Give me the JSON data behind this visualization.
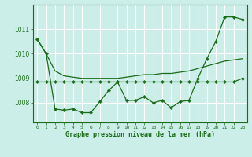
{
  "background_color": "#cceee8",
  "grid_color": "#ffffff",
  "line_color": "#1a6b1a",
  "title": "Graphe pression niveau de la mer (hPa)",
  "xlim": [
    -0.5,
    23.5
  ],
  "ylim": [
    1007.2,
    1012.0
  ],
  "yticks": [
    1008,
    1009,
    1010,
    1011
  ],
  "xtick_labels": [
    "0",
    "1",
    "2",
    "3",
    "4",
    "5",
    "6",
    "7",
    "8",
    "9",
    "10",
    "11",
    "12",
    "13",
    "14",
    "15",
    "16",
    "17",
    "18",
    "19",
    "20",
    "21",
    "22",
    "23"
  ],
  "series1_x": [
    0,
    1,
    2,
    3,
    4,
    5,
    6,
    7,
    8,
    9,
    10,
    11,
    12,
    13,
    14,
    15,
    16,
    17,
    18,
    19,
    20,
    21,
    22,
    23
  ],
  "series1_y": [
    1010.6,
    1010.0,
    1007.75,
    1007.7,
    1007.75,
    1007.6,
    1007.6,
    1008.05,
    1008.5,
    1008.85,
    1008.1,
    1008.1,
    1008.25,
    1008.0,
    1008.1,
    1007.8,
    1008.05,
    1008.1,
    1009.0,
    1009.8,
    1010.5,
    1011.5,
    1011.5,
    1011.4
  ],
  "series2_x": [
    0,
    1,
    2,
    3,
    4,
    5,
    6,
    7,
    8,
    9,
    10,
    11,
    12,
    13,
    14,
    15,
    16,
    17,
    18,
    19,
    20,
    21,
    22,
    23
  ],
  "series2_y": [
    1008.85,
    1008.85,
    1008.85,
    1008.85,
    1008.85,
    1008.85,
    1008.85,
    1008.85,
    1008.85,
    1008.85,
    1008.85,
    1008.85,
    1008.85,
    1008.85,
    1008.85,
    1008.85,
    1008.85,
    1008.85,
    1008.85,
    1008.85,
    1008.85,
    1008.85,
    1008.85,
    1009.0
  ],
  "series3_x": [
    0,
    1,
    2,
    3,
    4,
    5,
    6,
    7,
    8,
    9,
    10,
    11,
    12,
    13,
    14,
    15,
    16,
    17,
    18,
    19,
    20,
    21,
    22,
    23
  ],
  "series3_y": [
    1010.6,
    1010.0,
    1009.3,
    1009.1,
    1009.05,
    1009.0,
    1009.0,
    1009.0,
    1009.0,
    1009.0,
    1009.05,
    1009.1,
    1009.15,
    1009.15,
    1009.2,
    1009.2,
    1009.25,
    1009.3,
    1009.4,
    1009.5,
    1009.6,
    1009.7,
    1009.75,
    1009.8
  ]
}
